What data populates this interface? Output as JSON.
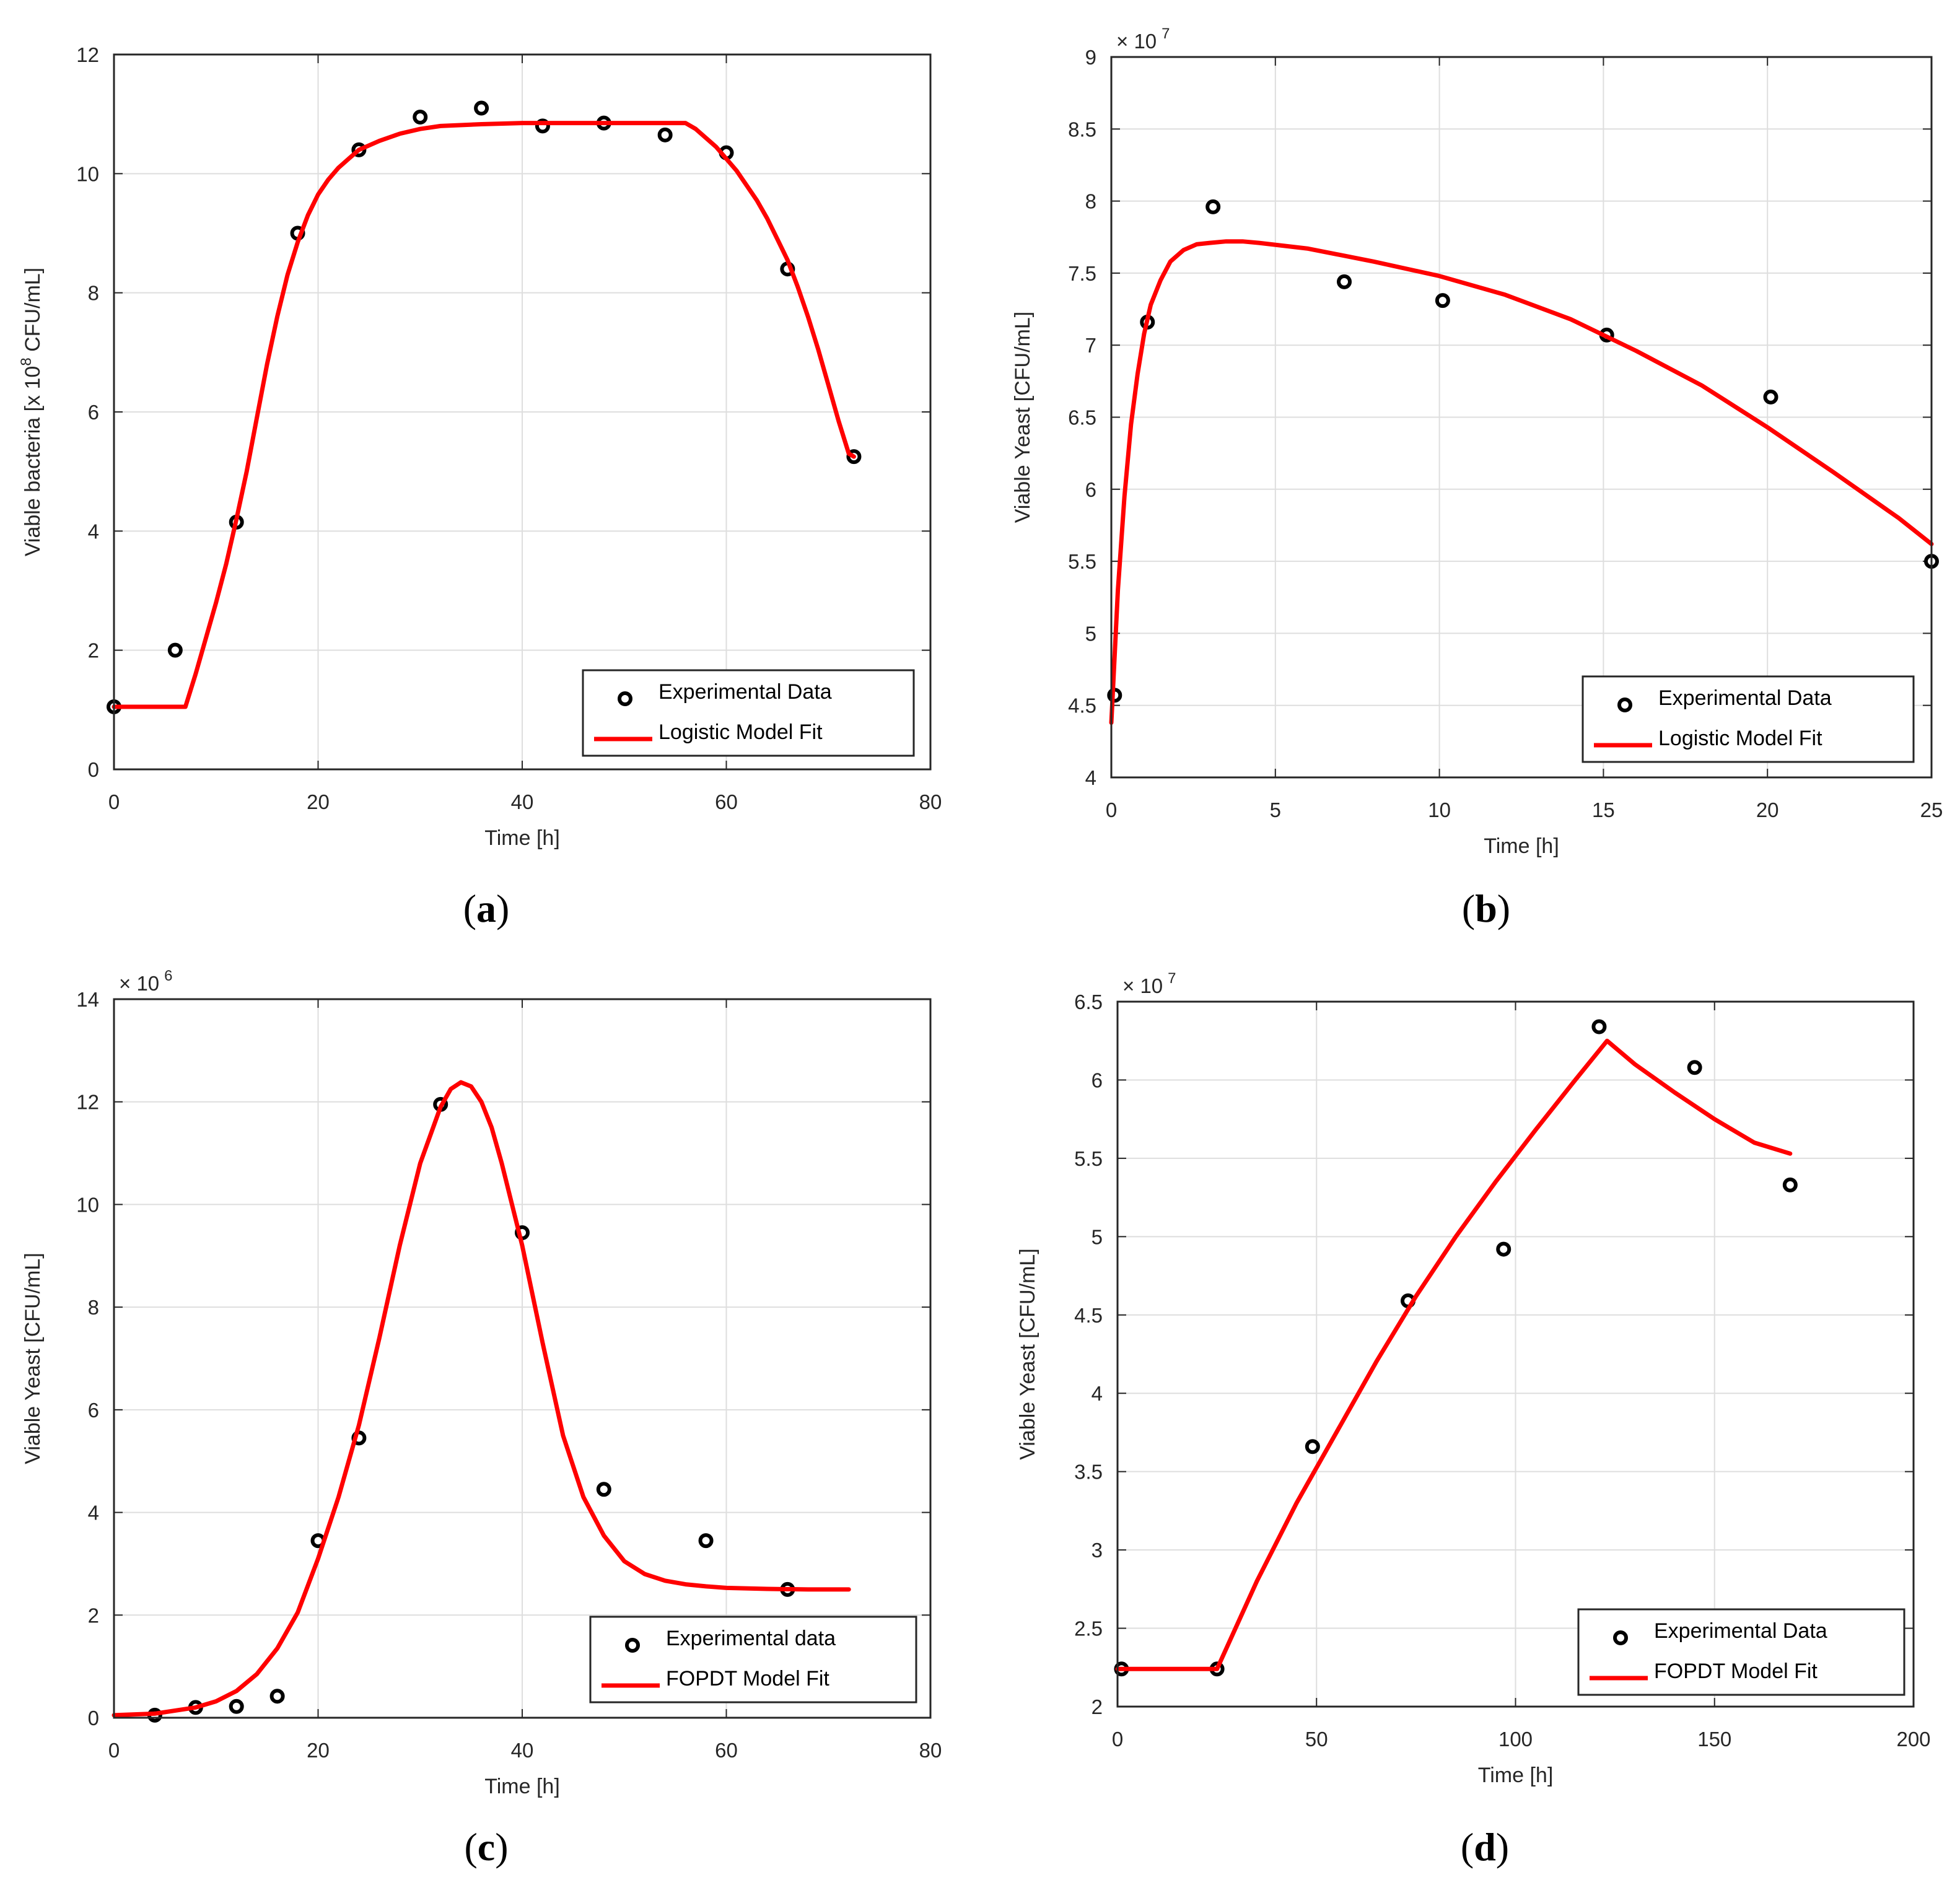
{
  "chart_data": [
    {
      "type": "scatter",
      "panel_label": "(a)",
      "panel_label_parts": [
        "(",
        "a",
        ")"
      ],
      "xlabel": "Time [h]",
      "ylabel_text": "Viable bacteria [x 10",
      "ylabel_superscript": "8",
      "ylabel_suffix": " CFU/mL]",
      "exponent_base": "",
      "exponent": "",
      "xlim": [
        0,
        80
      ],
      "ylim": [
        0,
        12
      ],
      "xticks": [
        0,
        20,
        40,
        60,
        80
      ],
      "yticks": [
        0,
        2,
        4,
        6,
        8,
        10,
        12
      ],
      "xtick_labels": [
        "0",
        "20",
        "40",
        "60",
        "80"
      ],
      "ytick_labels": [
        "0",
        "2",
        "4",
        "6",
        "8",
        "10",
        "12"
      ],
      "grid": true,
      "legend_position": "bottom-right",
      "series": [
        {
          "name": "Experimental Data",
          "kind": "markers",
          "x": [
            0,
            6,
            12,
            18,
            24,
            30,
            36,
            42,
            48,
            54,
            60,
            66,
            72.5
          ],
          "y": [
            1.05,
            2.0,
            4.15,
            9.0,
            10.4,
            10.95,
            11.1,
            10.8,
            10.85,
            10.65,
            10.35,
            8.4,
            5.25
          ]
        },
        {
          "name": "Logistic Model Fit",
          "kind": "line",
          "color": "#ff0000",
          "x": [
            0,
            7,
            8,
            9,
            10,
            11,
            12,
            13,
            14,
            15,
            16,
            17,
            18,
            19,
            20,
            21,
            22,
            23,
            24,
            26,
            28,
            30,
            32,
            36,
            40,
            44,
            48,
            52,
            56,
            57,
            58,
            59,
            60,
            61,
            62,
            63,
            64,
            65,
            66,
            67,
            68,
            69,
            70,
            71,
            72,
            72.5
          ],
          "y": [
            1.05,
            1.05,
            1.6,
            2.2,
            2.8,
            3.45,
            4.2,
            5.0,
            5.9,
            6.8,
            7.6,
            8.3,
            8.85,
            9.3,
            9.65,
            9.9,
            10.1,
            10.25,
            10.4,
            10.55,
            10.67,
            10.75,
            10.8,
            10.83,
            10.85,
            10.85,
            10.85,
            10.85,
            10.85,
            10.75,
            10.6,
            10.45,
            10.25,
            10.05,
            9.8,
            9.55,
            9.25,
            8.9,
            8.55,
            8.1,
            7.6,
            7.05,
            6.45,
            5.85,
            5.3,
            5.25
          ]
        }
      ]
    },
    {
      "type": "scatter",
      "panel_label": "(b)",
      "panel_label_parts": [
        "(",
        "b",
        ")"
      ],
      "xlabel": "Time [h]",
      "ylabel_text": "Viable Yeast [CFU/mL]",
      "ylabel_superscript": "",
      "ylabel_suffix": "",
      "exponent_base": "× 10",
      "exponent": "7",
      "xlim": [
        0,
        25
      ],
      "ylim": [
        4,
        9
      ],
      "xticks": [
        0,
        5,
        10,
        15,
        20,
        25
      ],
      "yticks": [
        4,
        4.5,
        5,
        5.5,
        6,
        6.5,
        7,
        7.5,
        8,
        8.5,
        9
      ],
      "xtick_labels": [
        "0",
        "5",
        "10",
        "15",
        "20",
        "25"
      ],
      "ytick_labels": [
        "4",
        "4.5",
        "5",
        "5.5",
        "6",
        "6.5",
        "7",
        "7.5",
        "8",
        "8.5",
        "9"
      ],
      "grid": true,
      "legend_position": "bottom-right",
      "series": [
        {
          "name": "Experimental Data",
          "kind": "markers",
          "x": [
            0.1,
            1.1,
            3.1,
            7.1,
            10.1,
            15.1,
            20.1,
            25
          ],
          "y": [
            4.57,
            7.16,
            7.96,
            7.44,
            7.31,
            7.07,
            6.64,
            5.5
          ]
        },
        {
          "name": "Logistic Model Fit",
          "kind": "line",
          "color": "#ff0000",
          "x": [
            0,
            0.2,
            0.4,
            0.6,
            0.8,
            1.0,
            1.2,
            1.5,
            1.8,
            2.2,
            2.6,
            3.0,
            3.5,
            4.0,
            4.5,
            6,
            8,
            10,
            12,
            14,
            16,
            18,
            20,
            22,
            24,
            25
          ],
          "y": [
            4.38,
            5.3,
            5.95,
            6.45,
            6.8,
            7.08,
            7.28,
            7.45,
            7.58,
            7.66,
            7.7,
            7.71,
            7.72,
            7.72,
            7.71,
            7.67,
            7.58,
            7.48,
            7.35,
            7.18,
            6.96,
            6.72,
            6.43,
            6.12,
            5.8,
            5.62
          ]
        }
      ]
    },
    {
      "type": "scatter",
      "panel_label": "(c)",
      "panel_label_parts": [
        "(",
        "c",
        ")"
      ],
      "xlabel": "Time [h]",
      "ylabel_text": "Viable Yeast [CFU/mL]",
      "ylabel_superscript": "",
      "ylabel_suffix": "",
      "exponent_base": "× 10",
      "exponent": "6",
      "xlim": [
        0,
        80
      ],
      "ylim": [
        0,
        14
      ],
      "xticks": [
        0,
        20,
        40,
        60,
        80
      ],
      "yticks": [
        0,
        2,
        4,
        6,
        8,
        10,
        12,
        14
      ],
      "xtick_labels": [
        "0",
        "20",
        "40",
        "60",
        "80"
      ],
      "ytick_labels": [
        "0",
        "2",
        "4",
        "6",
        "8",
        "10",
        "12",
        "14"
      ],
      "grid": true,
      "legend_position": "bottom-right",
      "series": [
        {
          "name": "Experimental data",
          "kind": "markers",
          "x": [
            4,
            8,
            12,
            16,
            20,
            24,
            32,
            40,
            48,
            58,
            66
          ],
          "y": [
            0.05,
            0.2,
            0.22,
            0.42,
            3.45,
            5.45,
            11.95,
            9.45,
            4.45,
            3.45,
            2.5
          ]
        },
        {
          "name": "FOPDT Model Fit",
          "kind": "line",
          "color": "#ff0000",
          "x": [
            0,
            4,
            8,
            10,
            12,
            14,
            16,
            18,
            20,
            22,
            24,
            26,
            28,
            30,
            32,
            33,
            34,
            35,
            36,
            37,
            38,
            40,
            42,
            44,
            46,
            48,
            50,
            52,
            54,
            56,
            58,
            60,
            64,
            68,
            72
          ],
          "y": [
            0.05,
            0.08,
            0.2,
            0.32,
            0.52,
            0.85,
            1.35,
            2.05,
            3.1,
            4.3,
            5.7,
            7.4,
            9.2,
            10.8,
            11.9,
            12.25,
            12.38,
            12.3,
            12.0,
            11.5,
            10.8,
            9.2,
            7.3,
            5.5,
            4.3,
            3.55,
            3.05,
            2.8,
            2.67,
            2.6,
            2.56,
            2.53,
            2.51,
            2.5,
            2.5
          ]
        }
      ]
    },
    {
      "type": "scatter",
      "panel_label": "(d)",
      "panel_label_parts": [
        "(",
        "d",
        ")"
      ],
      "xlabel": "Time [h]",
      "ylabel_text": "Viable Yeast [CFU/mL]",
      "ylabel_superscript": "",
      "ylabel_suffix": "",
      "exponent_base": "× 10",
      "exponent": "7",
      "xlim": [
        0,
        200
      ],
      "ylim": [
        2,
        6.5
      ],
      "xticks": [
        0,
        50,
        100,
        150,
        200
      ],
      "yticks": [
        2,
        2.5,
        3,
        3.5,
        4,
        4.5,
        5,
        5.5,
        6,
        6.5
      ],
      "xtick_labels": [
        "0",
        "50",
        "100",
        "150",
        "200"
      ],
      "ytick_labels": [
        "2",
        "2.5",
        "3",
        "3.5",
        "4",
        "4.5",
        "5",
        "5.5",
        "6",
        "6.5"
      ],
      "grid": true,
      "legend_position": "bottom-right",
      "series": [
        {
          "name": "Experimental Data",
          "kind": "markers",
          "x": [
            1,
            25,
            49,
            73,
            97,
            121,
            145,
            169
          ],
          "y": [
            2.24,
            2.24,
            3.66,
            4.59,
            4.92,
            6.34,
            6.08,
            5.33
          ]
        },
        {
          "name": "FOPDT Model Fit",
          "kind": "line",
          "color": "#ff0000",
          "x": [
            0,
            25,
            35,
            45,
            55,
            65,
            75,
            85,
            95,
            105,
            115,
            123,
            130,
            140,
            150,
            160,
            169
          ],
          "y": [
            2.24,
            2.24,
            2.8,
            3.3,
            3.75,
            4.2,
            4.62,
            5.0,
            5.35,
            5.68,
            6.0,
            6.25,
            6.1,
            5.92,
            5.75,
            5.6,
            5.53
          ]
        }
      ]
    }
  ]
}
